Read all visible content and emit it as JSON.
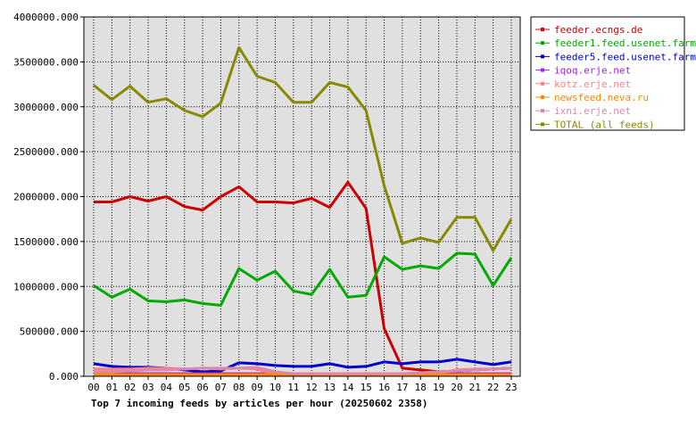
{
  "chart_data": {
    "type": "line",
    "title": "Top 7 incoming feeds by articles per hour (20250602 2358)",
    "xlabel": "",
    "ylabel": "",
    "ylim": [
      0,
      4000000
    ],
    "yticks": [
      "0.000",
      "500000.000",
      "1000000.000",
      "1500000.000",
      "2000000.000",
      "2500000.000",
      "3000000.000",
      "3500000.000",
      "4000000.000"
    ],
    "ytick_values": [
      0,
      500000,
      1000000,
      1500000,
      2000000,
      2500000,
      3000000,
      3500000,
      4000000
    ],
    "categories": [
      "00",
      "01",
      "02",
      "03",
      "04",
      "05",
      "06",
      "07",
      "08",
      "09",
      "10",
      "11",
      "12",
      "13",
      "14",
      "15",
      "16",
      "17",
      "18",
      "19",
      "20",
      "21",
      "22",
      "23"
    ],
    "grid": true,
    "legend_position": "right",
    "series": [
      {
        "name": "feeder.ecngs.de",
        "color": "#cc0000",
        "values": [
          1940000,
          1940000,
          2000000,
          1950000,
          2000000,
          1890000,
          1850000,
          2000000,
          2110000,
          1940000,
          1940000,
          1930000,
          1980000,
          1880000,
          2160000,
          1870000,
          530000,
          90000,
          70000,
          50000,
          60000,
          70000,
          80000,
          90000
        ]
      },
      {
        "name": "feeder1.feed.usenet.farm",
        "color": "#00aa00",
        "values": [
          1010000,
          880000,
          970000,
          840000,
          830000,
          850000,
          810000,
          790000,
          1200000,
          1070000,
          1170000,
          950000,
          910000,
          1190000,
          880000,
          900000,
          1330000,
          1190000,
          1230000,
          1200000,
          1370000,
          1360000,
          1010000,
          1320000
        ]
      },
      {
        "name": "feeder5.feed.usenet.farm",
        "color": "#0000cc",
        "values": [
          140000,
          110000,
          100000,
          100000,
          90000,
          70000,
          50000,
          60000,
          150000,
          140000,
          120000,
          110000,
          110000,
          140000,
          100000,
          110000,
          160000,
          140000,
          160000,
          160000,
          190000,
          160000,
          130000,
          160000
        ]
      },
      {
        "name": "iqoq.erje.net",
        "color": "#a020f0",
        "values": [
          30000,
          30000,
          30000,
          30000,
          30000,
          30000,
          30000,
          30000,
          30000,
          30000,
          30000,
          30000,
          30000,
          30000,
          30000,
          30000,
          30000,
          30000,
          30000,
          30000,
          30000,
          30000,
          30000,
          30000
        ]
      },
      {
        "name": "kotz.erje.net",
        "color": "#ff8080",
        "values": [
          80000,
          80000,
          80000,
          90000,
          90000,
          80000,
          90000,
          80000,
          90000,
          80000,
          20000,
          20000,
          20000,
          20000,
          20000,
          20000,
          20000,
          20000,
          30000,
          40000,
          70000,
          80000,
          80000,
          90000
        ]
      },
      {
        "name": "newsfeed.neva.ru",
        "color": "#ff8800",
        "values": [
          20000,
          20000,
          20000,
          20000,
          20000,
          20000,
          20000,
          20000,
          20000,
          20000,
          20000,
          20000,
          20000,
          20000,
          20000,
          20000,
          20000,
          20000,
          20000,
          20000,
          20000,
          20000,
          20000,
          20000
        ]
      },
      {
        "name": "ixni.erje.net",
        "color": "#dd88aa",
        "values": [
          50000,
          50000,
          60000,
          70000,
          70000,
          80000,
          90000,
          90000,
          90000,
          100000,
          50000,
          30000,
          30000,
          30000,
          30000,
          30000,
          30000,
          30000,
          40000,
          50000,
          60000,
          70000,
          80000,
          90000
        ]
      },
      {
        "name": "TOTAL (all feeds)",
        "color": "#888800",
        "values": [
          3240000,
          3080000,
          3230000,
          3050000,
          3090000,
          2960000,
          2890000,
          3040000,
          3660000,
          3340000,
          3270000,
          3050000,
          3050000,
          3270000,
          3220000,
          2960000,
          2120000,
          1480000,
          1540000,
          1490000,
          1770000,
          1770000,
          1400000,
          1750000
        ]
      }
    ]
  }
}
